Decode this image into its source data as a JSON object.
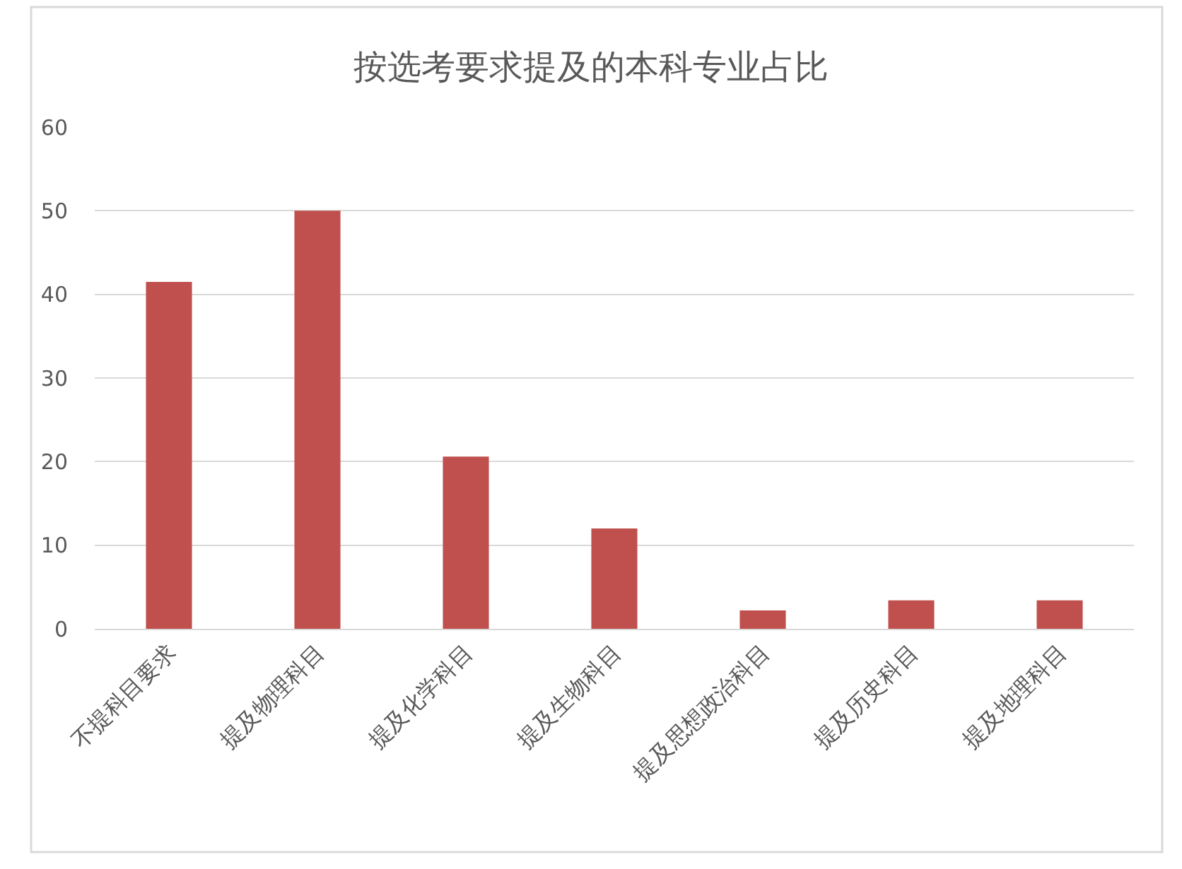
{
  "chart_data": {
    "type": "bar",
    "title": "按选考要求提及的本科专业占比",
    "categories": [
      "不提科目要求",
      "提及物理科目",
      "提及化学科目",
      "提及生物科目",
      "提及思想政治科目",
      "提及历史科目",
      "提及地理科目"
    ],
    "values": [
      41.5,
      50,
      20.6,
      12,
      2.2,
      3.4,
      3.4
    ],
    "color": "#c0504d",
    "ylim": [
      0,
      60
    ],
    "yticks": [
      0,
      10,
      20,
      30,
      40,
      50,
      60
    ],
    "grid": "y"
  }
}
